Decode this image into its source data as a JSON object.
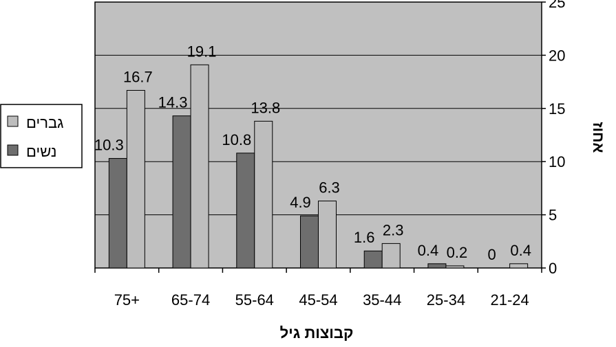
{
  "chart_data": {
    "type": "bar",
    "categories": [
      "75+",
      "65-74",
      "55-64",
      "45-54",
      "35-44",
      "25-34",
      "21-24"
    ],
    "series": [
      {
        "name": "נשים",
        "color": "#6e6e6e",
        "values": [
          10.3,
          14.3,
          10.8,
          4.9,
          1.6,
          0.4,
          0
        ]
      },
      {
        "name": "גברים",
        "color": "#bdbdbd",
        "values": [
          16.7,
          19.1,
          13.8,
          6.3,
          2.3,
          0.2,
          0.4
        ]
      }
    ],
    "xlabel": "קבוצות גיל",
    "ylabel": "אחוז",
    "ylim": [
      0,
      25
    ],
    "yticks": [
      0,
      5,
      10,
      15,
      20,
      25
    ],
    "y_axis_side": "right",
    "grid": true,
    "plot_background": "#c0c0c0",
    "legend": {
      "position": "left",
      "order": [
        "גברים",
        "נשים"
      ]
    }
  }
}
